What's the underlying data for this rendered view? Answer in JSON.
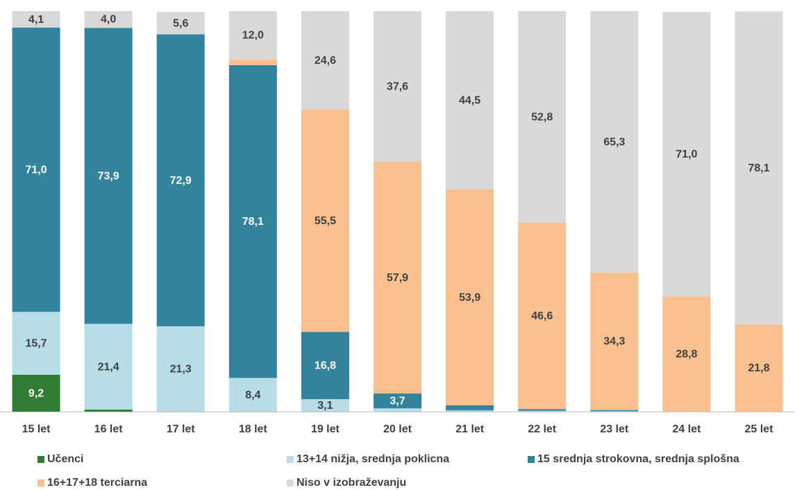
{
  "chart_data": {
    "type": "bar",
    "stacked": true,
    "title": "",
    "xlabel": "",
    "ylabel": "",
    "ylim": [
      0,
      100
    ],
    "grid": false,
    "legend_position": "bottom",
    "categories": [
      "15 let",
      "16 let",
      "17 let",
      "18 let",
      "19 let",
      "20 let",
      "21 let",
      "22 let",
      "23 let",
      "24 let",
      "25 let"
    ],
    "series": [
      {
        "name": "Učenci",
        "color": "#2e7d32",
        "values": [
          9.2,
          0.5,
          0,
          0,
          0,
          0,
          0,
          0,
          0,
          0,
          0
        ],
        "labels": [
          "9,2",
          "",
          "",
          "",
          "",
          "",
          "",
          "",
          "",
          "",
          ""
        ]
      },
      {
        "name": "13+14 nižja, srednja poklicna",
        "color": "#b7dde8",
        "values": [
          15.7,
          21.4,
          21.3,
          8.4,
          3.1,
          0.8,
          0.3,
          0.2,
          0.1,
          0,
          0
        ],
        "labels": [
          "15,7",
          "21,4",
          "21,3",
          "8,4",
          "3,1",
          "",
          "",
          "",
          "",
          "",
          ""
        ]
      },
      {
        "name": "15 srednja strokovna, srednja splošna",
        "color": "#31849b",
        "values": [
          71.0,
          73.9,
          72.9,
          78.1,
          16.8,
          3.7,
          1.3,
          0.4,
          0.3,
          0,
          0
        ],
        "labels": [
          "71,0",
          "73,9",
          "72,9",
          "78,1",
          "16,8",
          "3,7",
          "",
          "",
          "",
          "",
          ""
        ]
      },
      {
        "name": "16+17+18 terciarna",
        "color": "#fac08f",
        "values": [
          0,
          0.2,
          0,
          1.5,
          55.5,
          57.9,
          53.9,
          46.6,
          34.3,
          28.8,
          21.8
        ],
        "labels": [
          "",
          "",
          "",
          "",
          "55,5",
          "57,9",
          "53,9",
          "46,6",
          "34,3",
          "28,8",
          "21,8"
        ]
      },
      {
        "name": "Niso v izobraževanju",
        "color": "#d9d9d9",
        "values": [
          4.1,
          4.0,
          5.6,
          12.0,
          24.6,
          37.6,
          44.5,
          52.8,
          65.3,
          71.0,
          78.1
        ],
        "labels": [
          "4,1",
          "4,0",
          "5,6",
          "12,0",
          "24,6",
          "37,6",
          "44,5",
          "52,8",
          "65,3",
          "71,0",
          "78,1"
        ]
      }
    ]
  }
}
